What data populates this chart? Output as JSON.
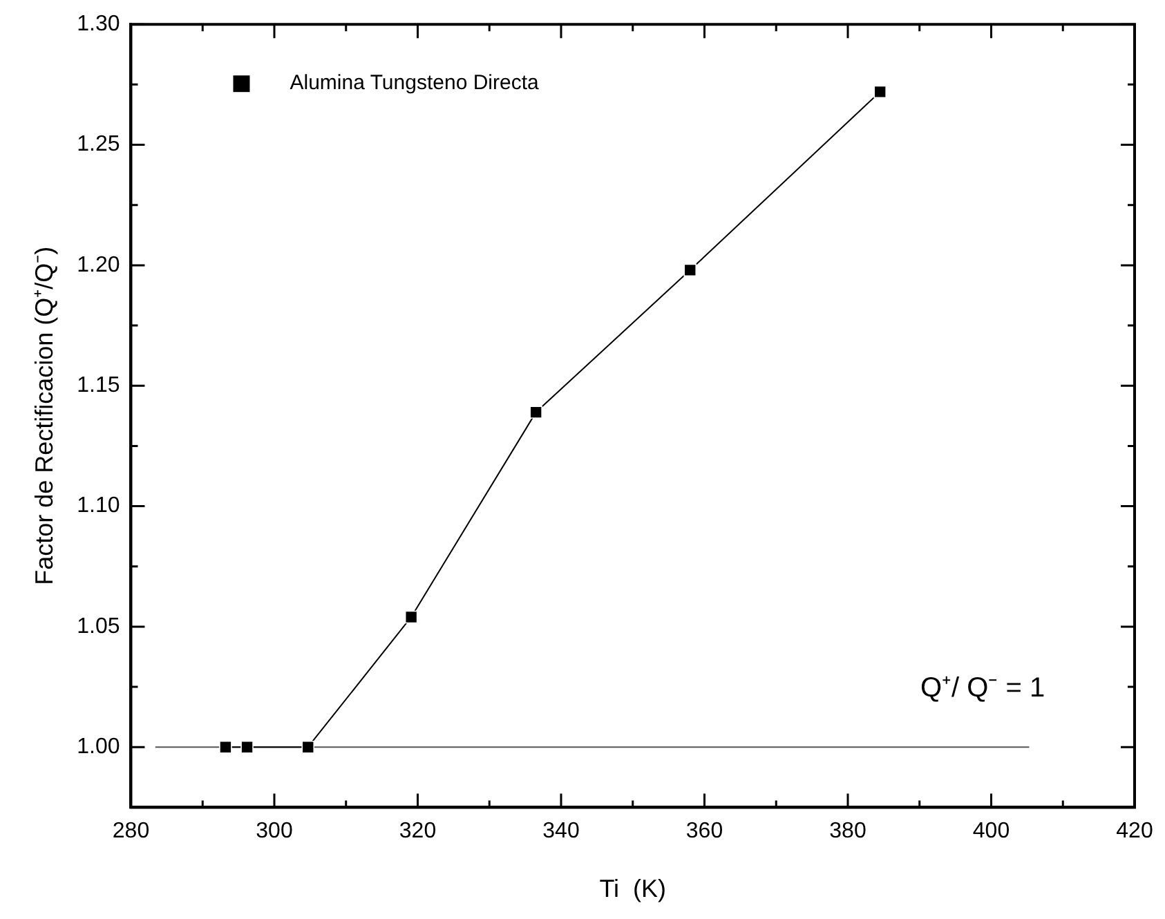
{
  "chart_data": {
    "type": "line",
    "xlabel": "Ti  (K)",
    "ylabel": "Factor de Rectificacion (Q⁺/Q⁻)",
    "series": [
      {
        "name": "Alumina Tungsteno Directa",
        "color": "#000000",
        "x": [
          293.2,
          296.2,
          304.7,
          319.1,
          336.5,
          358,
          384.5
        ],
        "values": [
          1.0,
          1.0,
          1.0,
          1.054,
          1.139,
          1.198,
          1.272
        ]
      },
      {
        "type": "line",
        "marker": "none",
        "color": "#555555",
        "x": [
          283.4,
          405.3
        ],
        "values": [
          1,
          1
        ]
      }
    ],
    "marker": "square",
    "line_style": "solid",
    "legend": "top left",
    "grid": false,
    "xlim": [
      280,
      420
    ],
    "xticks": [
      280,
      {
        "value": 290,
        "label": null
      },
      300,
      {
        "value": 310,
        "label": null
      },
      320,
      {
        "value": 330,
        "label": null
      },
      340,
      {
        "value": 350,
        "label": null
      },
      360,
      {
        "value": 370,
        "label": null
      },
      380,
      {
        "value": 390,
        "label": null
      },
      400,
      {
        "value": 410,
        "label": null
      },
      420
    ],
    "ylim": [
      0.975,
      1.3
    ],
    "yticks": [
      {
        "value": 1,
        "label": "1.00"
      },
      {
        "value": 1.025,
        "label": null
      },
      {
        "value": 1.05,
        "label": "1.05"
      },
      {
        "value": 1.075,
        "label": null
      },
      {
        "value": 1.1,
        "label": "1.10"
      },
      {
        "value": 1.125,
        "label": null
      },
      {
        "value": 1.15,
        "label": "1.15"
      },
      {
        "value": 1.175,
        "label": null
      },
      {
        "value": 1.2,
        "label": "1.20"
      },
      {
        "value": 1.225,
        "label": null
      },
      {
        "value": 1.25,
        "label": "1.25"
      },
      {
        "value": 1.275,
        "label": null
      },
      {
        "value": 1.3,
        "label": "1.30"
      }
    ],
    "annotations": [
      "Q⁺/ Q⁻ = 1"
    ]
  }
}
